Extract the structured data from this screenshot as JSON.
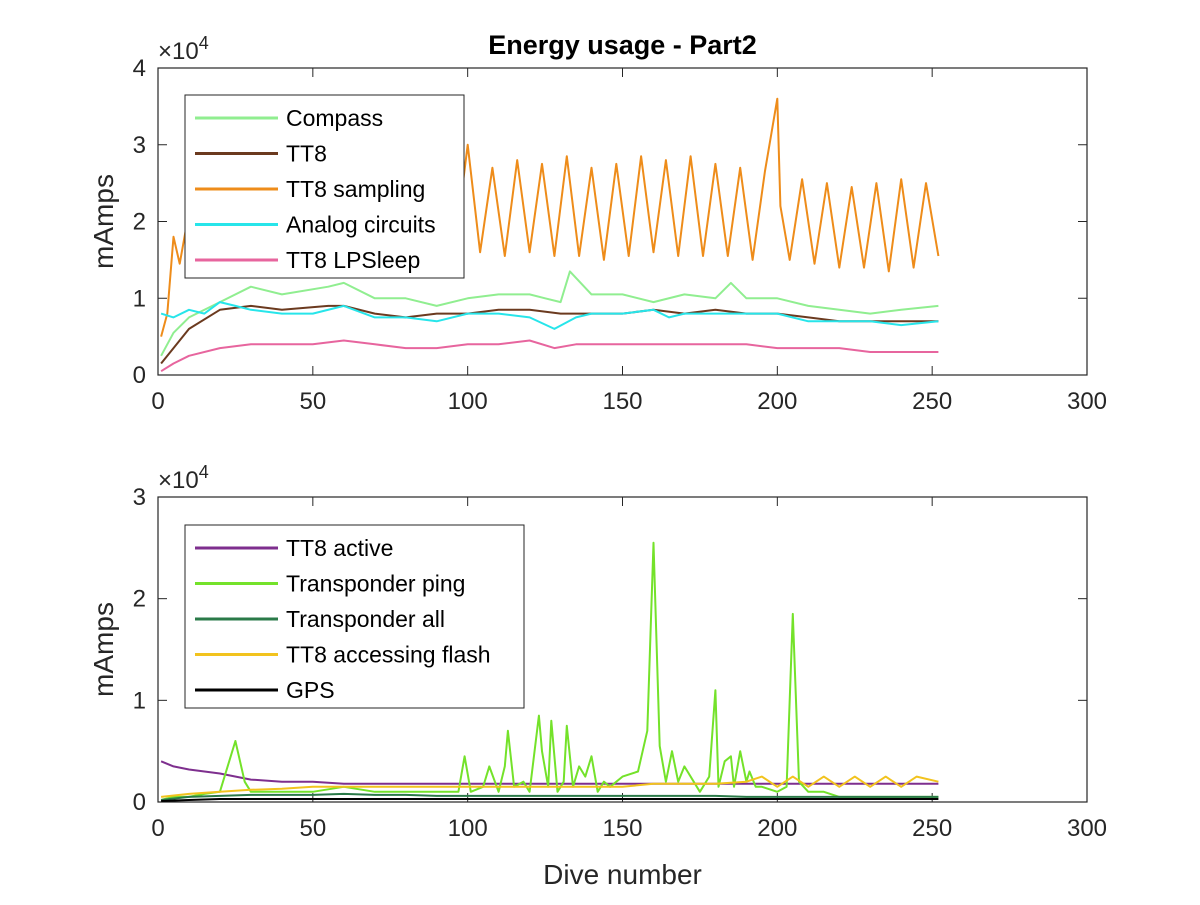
{
  "chart_data": [
    {
      "type": "line",
      "title": "Energy usage - Part2",
      "xlabel": "",
      "ylabel": "mAmps",
      "xlim": [
        0,
        300
      ],
      "ylim": [
        0,
        4
      ],
      "y_multiplier_label": "×10",
      "y_multiplier_exponent": "4",
      "x_ticks": [
        "0",
        "50",
        "100",
        "150",
        "200",
        "250",
        "300"
      ],
      "y_ticks": [
        "0",
        "1",
        "2",
        "3",
        "4"
      ],
      "legend_position": "top-left",
      "series": [
        {
          "name": "Compass",
          "color": "#90EE90",
          "x": [
            1,
            5,
            10,
            20,
            30,
            40,
            55,
            60,
            70,
            80,
            90,
            100,
            110,
            120,
            125,
            130,
            133,
            140,
            150,
            160,
            170,
            180,
            185,
            190,
            200,
            210,
            220,
            230,
            240,
            252
          ],
          "y": [
            0.25,
            0.55,
            0.75,
            0.95,
            1.15,
            1.05,
            1.15,
            1.2,
            1.0,
            1.0,
            0.9,
            1.0,
            1.05,
            1.05,
            1.0,
            0.95,
            1.35,
            1.05,
            1.05,
            0.95,
            1.05,
            1.0,
            1.2,
            1.0,
            1.0,
            0.9,
            0.85,
            0.8,
            0.85,
            0.9
          ]
        },
        {
          "name": "TT8",
          "color": "#6B3A1F",
          "x": [
            1,
            5,
            10,
            20,
            30,
            40,
            55,
            60,
            70,
            80,
            90,
            100,
            110,
            120,
            130,
            140,
            150,
            160,
            170,
            180,
            190,
            200,
            210,
            220,
            230,
            240,
            252
          ],
          "y": [
            0.15,
            0.35,
            0.6,
            0.85,
            0.9,
            0.85,
            0.9,
            0.9,
            0.8,
            0.75,
            0.8,
            0.8,
            0.85,
            0.85,
            0.8,
            0.8,
            0.8,
            0.85,
            0.8,
            0.85,
            0.8,
            0.8,
            0.75,
            0.7,
            0.7,
            0.7,
            0.7
          ]
        },
        {
          "name": "TT8 sampling",
          "color": "#EE8C1A",
          "x": [
            1,
            3,
            5,
            7,
            9,
            12,
            15,
            18,
            21,
            24,
            28,
            32,
            36,
            40,
            44,
            48,
            52,
            56,
            60,
            64,
            68,
            72,
            76,
            80,
            84,
            88,
            92,
            96,
            100,
            104,
            108,
            112,
            116,
            120,
            124,
            128,
            132,
            136,
            140,
            144,
            148,
            152,
            156,
            160,
            164,
            168,
            172,
            176,
            180,
            184,
            188,
            192,
            196,
            200,
            201,
            204,
            208,
            212,
            216,
            220,
            224,
            228,
            232,
            236,
            240,
            244,
            248,
            252
          ],
          "y": [
            0.5,
            0.8,
            1.8,
            1.45,
            1.9,
            1.6,
            2.3,
            1.75,
            2.5,
            1.7,
            2.45,
            1.75,
            2.6,
            1.8,
            2.55,
            1.75,
            2.5,
            1.7,
            2.5,
            1.8,
            2.6,
            1.8,
            2.45,
            1.7,
            2.5,
            1.65,
            2.6,
            1.7,
            3.0,
            1.6,
            2.7,
            1.55,
            2.8,
            1.6,
            2.75,
            1.55,
            2.85,
            1.55,
            2.7,
            1.5,
            2.75,
            1.55,
            2.85,
            1.6,
            2.8,
            1.55,
            2.85,
            1.55,
            2.75,
            1.55,
            2.7,
            1.5,
            2.65,
            3.6,
            2.2,
            1.5,
            2.55,
            1.45,
            2.5,
            1.4,
            2.45,
            1.4,
            2.5,
            1.35,
            2.55,
            1.4,
            2.5,
            1.55
          ]
        },
        {
          "name": "Analog circuits",
          "color": "#27E5EA",
          "x": [
            1,
            5,
            10,
            15,
            20,
            25,
            30,
            40,
            50,
            60,
            70,
            80,
            90,
            100,
            110,
            120,
            128,
            135,
            140,
            150,
            160,
            165,
            170,
            180,
            190,
            200,
            210,
            220,
            230,
            240,
            252
          ],
          "y": [
            0.8,
            0.75,
            0.85,
            0.8,
            0.95,
            0.9,
            0.85,
            0.8,
            0.8,
            0.9,
            0.75,
            0.75,
            0.7,
            0.8,
            0.8,
            0.75,
            0.6,
            0.75,
            0.8,
            0.8,
            0.85,
            0.75,
            0.8,
            0.8,
            0.8,
            0.8,
            0.7,
            0.7,
            0.7,
            0.65,
            0.7
          ]
        },
        {
          "name": "TT8 LPSleep",
          "color": "#E7659E",
          "x": [
            1,
            5,
            10,
            20,
            30,
            40,
            50,
            60,
            70,
            80,
            90,
            100,
            110,
            120,
            128,
            135,
            140,
            150,
            160,
            170,
            180,
            190,
            200,
            210,
            220,
            230,
            240,
            252
          ],
          "y": [
            0.05,
            0.15,
            0.25,
            0.35,
            0.4,
            0.4,
            0.4,
            0.45,
            0.4,
            0.35,
            0.35,
            0.4,
            0.4,
            0.45,
            0.35,
            0.4,
            0.4,
            0.4,
            0.4,
            0.4,
            0.4,
            0.4,
            0.35,
            0.35,
            0.35,
            0.3,
            0.3,
            0.3
          ]
        }
      ]
    },
    {
      "type": "line",
      "title": "",
      "xlabel": "Dive number",
      "ylabel": "mAmps",
      "xlim": [
        0,
        300
      ],
      "ylim": [
        0,
        3
      ],
      "y_multiplier_label": "×10",
      "y_multiplier_exponent": "4",
      "x_ticks": [
        "0",
        "50",
        "100",
        "150",
        "200",
        "250",
        "300"
      ],
      "y_ticks": [
        "0",
        "1",
        "2",
        "3"
      ],
      "legend_position": "top-left",
      "series": [
        {
          "name": "TT8 active",
          "color": "#7E2F8E",
          "x": [
            1,
            5,
            10,
            20,
            30,
            40,
            50,
            60,
            70,
            80,
            90,
            100,
            110,
            120,
            130,
            140,
            150,
            160,
            170,
            180,
            190,
            200,
            210,
            220,
            230,
            240,
            252
          ],
          "y": [
            0.4,
            0.35,
            0.32,
            0.28,
            0.22,
            0.2,
            0.2,
            0.18,
            0.18,
            0.18,
            0.18,
            0.18,
            0.18,
            0.18,
            0.18,
            0.18,
            0.18,
            0.18,
            0.18,
            0.18,
            0.18,
            0.18,
            0.18,
            0.18,
            0.18,
            0.18,
            0.18
          ]
        },
        {
          "name": "Transponder ping",
          "color": "#74E22A",
          "x": [
            1,
            5,
            10,
            15,
            20,
            23,
            25,
            28,
            30,
            40,
            50,
            60,
            70,
            80,
            90,
            97,
            99,
            101,
            105,
            107,
            110,
            112,
            113,
            115,
            118,
            120,
            123,
            124,
            126,
            127,
            129,
            131,
            132,
            134,
            136,
            138,
            140,
            142,
            144,
            146,
            150,
            155,
            158,
            160,
            162,
            164,
            166,
            168,
            170,
            175,
            178,
            180,
            181,
            183,
            185,
            186,
            188,
            190,
            191,
            193,
            195,
            200,
            203,
            205,
            207,
            210,
            215,
            220,
            230,
            240,
            252
          ],
          "y": [
            0.02,
            0.05,
            0.05,
            0.08,
            0.1,
            0.4,
            0.6,
            0.2,
            0.1,
            0.1,
            0.1,
            0.15,
            0.1,
            0.1,
            0.1,
            0.1,
            0.45,
            0.1,
            0.15,
            0.35,
            0.1,
            0.35,
            0.7,
            0.15,
            0.2,
            0.1,
            0.85,
            0.5,
            0.15,
            0.8,
            0.1,
            0.2,
            0.75,
            0.15,
            0.35,
            0.25,
            0.45,
            0.1,
            0.2,
            0.15,
            0.25,
            0.3,
            0.7,
            2.55,
            0.55,
            0.2,
            0.5,
            0.2,
            0.35,
            0.1,
            0.25,
            1.1,
            0.15,
            0.4,
            0.45,
            0.15,
            0.5,
            0.2,
            0.3,
            0.15,
            0.15,
            0.1,
            0.15,
            1.85,
            0.2,
            0.1,
            0.1,
            0.05,
            0.05,
            0.05,
            0.05
          ]
        },
        {
          "name": "Transponder all",
          "color": "#2A7A48",
          "x": [
            1,
            10,
            20,
            30,
            40,
            50,
            60,
            70,
            80,
            90,
            100,
            110,
            120,
            130,
            140,
            150,
            160,
            170,
            180,
            190,
            200,
            210,
            220,
            230,
            240,
            252
          ],
          "y": [
            0.02,
            0.05,
            0.06,
            0.07,
            0.07,
            0.07,
            0.08,
            0.07,
            0.07,
            0.06,
            0.06,
            0.06,
            0.06,
            0.06,
            0.06,
            0.06,
            0.06,
            0.06,
            0.06,
            0.05,
            0.05,
            0.05,
            0.05,
            0.05,
            0.05,
            0.05
          ]
        },
        {
          "name": "TT8 accessing flash",
          "color": "#F2C31E",
          "x": [
            1,
            10,
            20,
            30,
            40,
            50,
            60,
            70,
            80,
            90,
            100,
            110,
            120,
            130,
            140,
            150,
            160,
            170,
            180,
            190,
            195,
            200,
            205,
            210,
            215,
            220,
            225,
            230,
            235,
            240,
            245,
            252
          ],
          "y": [
            0.05,
            0.08,
            0.1,
            0.12,
            0.13,
            0.15,
            0.15,
            0.15,
            0.15,
            0.15,
            0.15,
            0.15,
            0.15,
            0.15,
            0.15,
            0.15,
            0.18,
            0.18,
            0.18,
            0.2,
            0.25,
            0.15,
            0.25,
            0.15,
            0.25,
            0.15,
            0.25,
            0.15,
            0.25,
            0.15,
            0.25,
            0.2
          ]
        },
        {
          "name": "GPS",
          "color": "#000000",
          "x": [
            1,
            10,
            20,
            30,
            40,
            50,
            60,
            70,
            80,
            90,
            100,
            110,
            120,
            130,
            140,
            150,
            160,
            170,
            180,
            190,
            200,
            210,
            220,
            230,
            240,
            252
          ],
          "y": [
            0.01,
            0.02,
            0.03,
            0.03,
            0.03,
            0.03,
            0.03,
            0.03,
            0.03,
            0.03,
            0.03,
            0.03,
            0.03,
            0.03,
            0.03,
            0.03,
            0.03,
            0.03,
            0.03,
            0.03,
            0.03,
            0.03,
            0.03,
            0.03,
            0.03,
            0.03
          ]
        }
      ]
    }
  ]
}
